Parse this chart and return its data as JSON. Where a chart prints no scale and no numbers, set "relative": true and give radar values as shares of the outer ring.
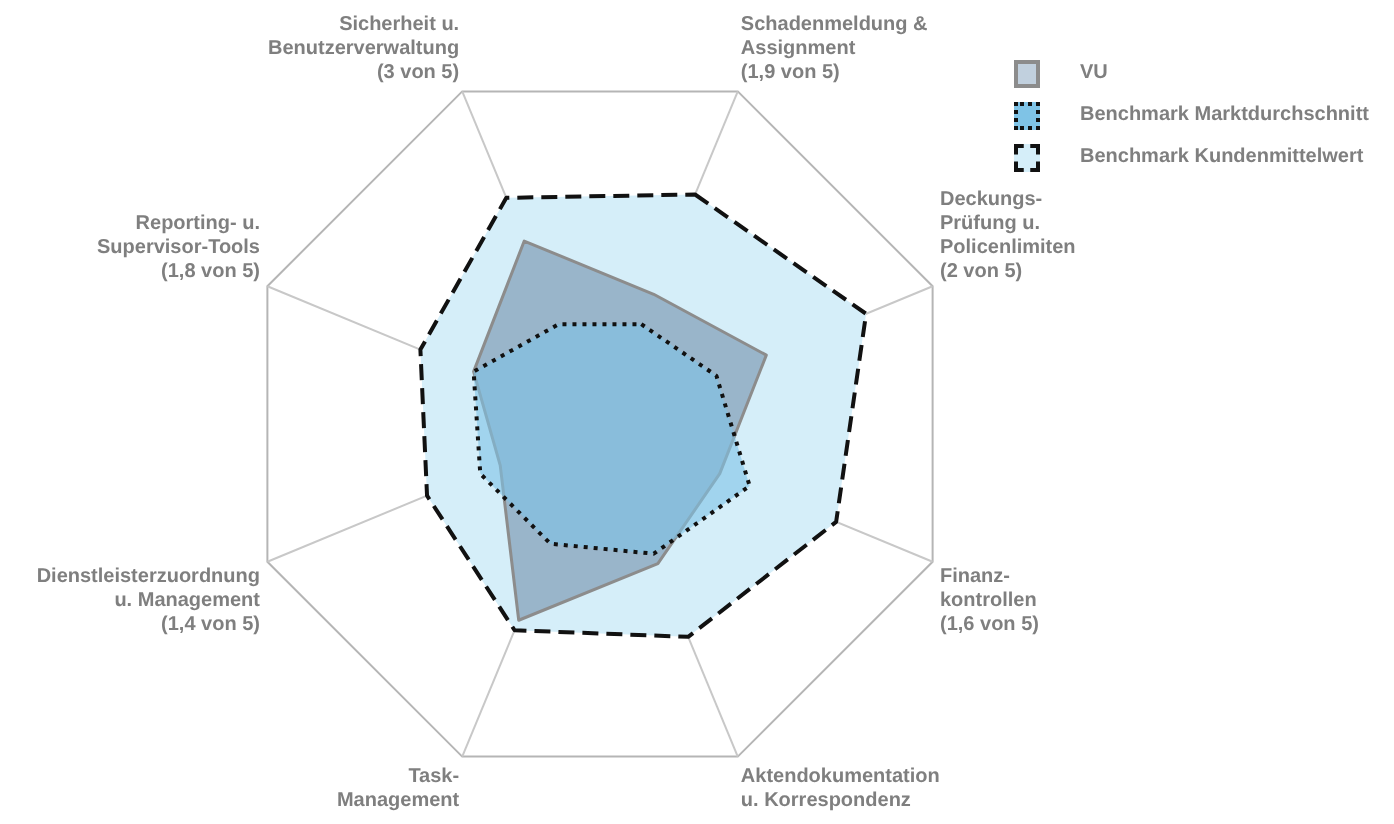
{
  "chart_data": {
    "type": "radar",
    "relative": true,
    "categories": [
      "Schadenmeldung &\nAssignment\n(1,9 von 5)",
      "Deckungs-\nPrüfung u.\nPolicenlimiten\n(2 von 5)",
      "Finanz-\nkontrollen\n(1,6 von 5)",
      "Aktendokumentation\nu. Korrespondenz",
      "Task-\nManagement",
      "Dienstleisterzuordnung\nu. Management\n(1,4 von 5)",
      "Reporting- u.\nSupervisor-Tools\n(1,8 von 5)",
      "Sicherheit u.\nBenutzerverwaltung\n(3 von 5)"
    ],
    "series": [
      {
        "name": "Benchmark Kundenmittelwert",
        "color": "#d5eef9",
        "line_style": "dashed",
        "values": [
          0.69,
          0.8,
          0.71,
          0.64,
          0.62,
          0.52,
          0.54,
          0.68
        ]
      },
      {
        "name": "VU",
        "color": "#8eaac2",
        "line_style": "solid",
        "values": [
          0.39,
          0.5,
          0.36,
          0.42,
          0.59,
          0.3,
          0.38,
          0.55
        ]
      },
      {
        "name": "Benchmark Marktdurchschnitt",
        "color": "#7fc3e6",
        "line_style": "dotted",
        "values": [
          0.3,
          0.35,
          0.45,
          0.39,
          0.36,
          0.36,
          0.38,
          0.3
        ]
      }
    ],
    "legend": "top right"
  }
}
